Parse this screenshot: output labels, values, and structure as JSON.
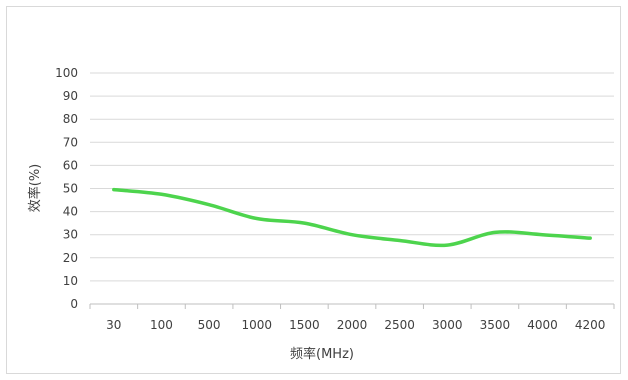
{
  "chart_data": {
    "type": "line",
    "title": "",
    "xlabel": "频率(MHz)",
    "ylabel": "效率(%)",
    "categories": [
      "30",
      "100",
      "500",
      "1000",
      "1500",
      "2000",
      "2500",
      "3000",
      "3500",
      "4000",
      "4200"
    ],
    "series": [
      {
        "values": [
          49.5,
          47.5,
          43,
          37,
          35,
          30,
          27.5,
          25.5,
          31,
          30,
          28.5
        ]
      }
    ],
    "ylim": [
      0,
      100
    ],
    "yticks": [
      0,
      10,
      20,
      30,
      40,
      50,
      60,
      70,
      80,
      90,
      100
    ],
    "grid": true,
    "legend": "none",
    "colors": {
      "line": "#4dd44d",
      "grid": "#d9d9d9",
      "axis": "#bfbfbf",
      "text": "#404040"
    }
  }
}
